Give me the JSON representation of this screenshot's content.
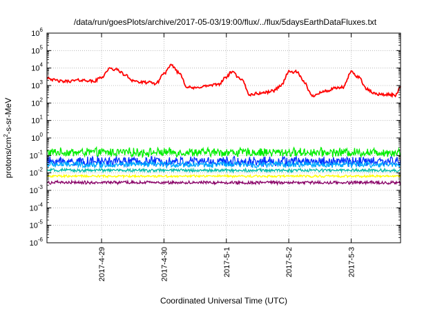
{
  "chart_data": {
    "type": "line",
    "title": "/data/run/goesPlots/archive/2017-05-03/19:00/flux/../flux/5daysEarthDataFluxes.txt",
    "xlabel": "Coordinated Universal Time (UTC)",
    "ylabel_parts": [
      "protons/cm",
      "2",
      "-s-sr-MeV"
    ],
    "y_scale": "log",
    "ylim": [
      1e-06,
      1000000.0
    ],
    "y_ticks": [
      {
        "base": "10",
        "exp": "6",
        "value": 1000000.0
      },
      {
        "base": "10",
        "exp": "5",
        "value": 100000.0
      },
      {
        "base": "10",
        "exp": "4",
        "value": 10000.0
      },
      {
        "base": "10",
        "exp": "3",
        "value": 1000.0
      },
      {
        "base": "10",
        "exp": "2",
        "value": 100.0
      },
      {
        "base": "10",
        "exp": "1",
        "value": 10.0
      },
      {
        "base": "10",
        "exp": "0",
        "value": 1.0
      },
      {
        "base": "10",
        "exp": "-1",
        "value": 0.1
      },
      {
        "base": "10",
        "exp": "-2",
        "value": 0.01
      },
      {
        "base": "10",
        "exp": "-3",
        "value": 0.001
      },
      {
        "base": "10",
        "exp": "-4",
        "value": 0.0001
      },
      {
        "base": "10",
        "exp": "-5",
        "value": 1e-05
      },
      {
        "base": "10",
        "exp": "-6",
        "value": 1e-06
      }
    ],
    "x_range": [
      "2017-04-28T03:00",
      "2017-05-03T19:00"
    ],
    "x_ticks": [
      {
        "label": "2017-4-29",
        "date": "2017-04-29T00:00"
      },
      {
        "label": "2017-4-30",
        "date": "2017-04-30T00:00"
      },
      {
        "label": "2017-5-1",
        "date": "2017-05-01T00:00"
      },
      {
        "label": "2017-5-2",
        "date": "2017-05-02T00:00"
      },
      {
        "label": "2017-5-3",
        "date": "2017-05-03T00:00"
      }
    ],
    "grid": true,
    "series": [
      {
        "color": "#ff0000",
        "points": [
          [
            "2017-04-28T03:00",
            3000
          ],
          [
            "2017-04-28T06:00",
            2000
          ],
          [
            "2017-04-28T09:00",
            1700
          ],
          [
            "2017-04-28T12:00",
            1800
          ],
          [
            "2017-04-28T15:00",
            2000
          ],
          [
            "2017-04-28T18:00",
            2000
          ],
          [
            "2017-04-28T21:00",
            1700
          ],
          [
            "2017-04-29T00:00",
            3000
          ],
          [
            "2017-04-29T03:00",
            9000
          ],
          [
            "2017-04-29T06:00",
            8000
          ],
          [
            "2017-04-29T09:00",
            4000
          ],
          [
            "2017-04-29T12:00",
            2000
          ],
          [
            "2017-04-29T15:00",
            1500
          ],
          [
            "2017-04-29T18:00",
            1500
          ],
          [
            "2017-04-29T21:00",
            1300
          ],
          [
            "2017-04-30T00:00",
            5000
          ],
          [
            "2017-04-30T03:00",
            14000
          ],
          [
            "2017-04-30T06:00",
            5000
          ],
          [
            "2017-04-30T09:00",
            800
          ],
          [
            "2017-04-30T12:00",
            700
          ],
          [
            "2017-04-30T15:00",
            900
          ],
          [
            "2017-04-30T18:00",
            1000
          ],
          [
            "2017-04-30T21:00",
            1200
          ],
          [
            "2017-05-01T00:00",
            3000
          ],
          [
            "2017-05-01T02:00",
            6000
          ],
          [
            "2017-05-01T06:00",
            2000
          ],
          [
            "2017-05-01T09:00",
            300
          ],
          [
            "2017-05-01T12:00",
            350
          ],
          [
            "2017-05-01T15:00",
            400
          ],
          [
            "2017-05-01T18:00",
            500
          ],
          [
            "2017-05-01T21:00",
            1000
          ],
          [
            "2017-05-02T00:00",
            6000
          ],
          [
            "2017-05-02T03:00",
            6000
          ],
          [
            "2017-05-02T06:00",
            1500
          ],
          [
            "2017-05-02T09:00",
            250
          ],
          [
            "2017-05-02T12:00",
            400
          ],
          [
            "2017-05-02T15:00",
            500
          ],
          [
            "2017-05-02T18:00",
            700
          ],
          [
            "2017-05-02T21:00",
            800
          ],
          [
            "2017-05-03T00:00",
            6000
          ],
          [
            "2017-05-03T03:00",
            3000
          ],
          [
            "2017-05-03T06:00",
            600
          ],
          [
            "2017-05-03T09:00",
            350
          ],
          [
            "2017-05-03T12:00",
            300
          ],
          [
            "2017-05-03T15:00",
            300
          ],
          [
            "2017-05-03T17:00",
            280
          ],
          [
            "2017-05-03T19:00",
            900
          ]
        ]
      },
      {
        "color": "#00ee00",
        "level": 0.15,
        "spread": 0.22
      },
      {
        "color": "#0033ff",
        "level": 0.045,
        "spread": 0.25
      },
      {
        "color": "#00aaff",
        "level": 0.03,
        "spread": 0.15
      },
      {
        "color": "#00bbaa",
        "level": 0.014,
        "spread": 0.08
      },
      {
        "color": "#ffff00",
        "level": 0.0065,
        "spread": 0.06
      },
      {
        "color": "#880066",
        "level": 0.0028,
        "spread": 0.08
      }
    ]
  }
}
